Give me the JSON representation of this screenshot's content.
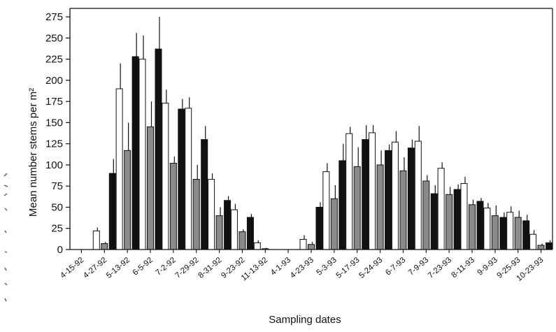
{
  "chart_data": {
    "type": "bar",
    "xlabel": "Sampling dates",
    "ylabel": "Mean number stems per m²",
    "ylim": [
      0,
      285
    ],
    "yticks": [
      0,
      25,
      50,
      75,
      100,
      125,
      150,
      175,
      200,
      225,
      250,
      275
    ],
    "grid": false,
    "legend": "none",
    "categories": [
      "4-15-92",
      "4-27-92",
      "5-13-92",
      "6-5-92",
      "7-2-92",
      "7-29-92",
      "8-31-92",
      "9-23-92",
      "11-13-92",
      "4-1-93",
      "4-23-93",
      "5-3-93",
      "5-17-93",
      "5-24-93",
      "6-7-93",
      "7-9-93",
      "7-23-93",
      "8-11-93",
      "9-9-93",
      "9-25-93",
      "10-23-93"
    ],
    "series": [
      {
        "fill": "#ffffff",
        "values": [
          0,
          22,
          190,
          225,
          173,
          167,
          83,
          47,
          8,
          0,
          12,
          92,
          137,
          138,
          127,
          128,
          96,
          78,
          49,
          44,
          18
        ],
        "errors": [
          0,
          4,
          30,
          28,
          16,
          13,
          7,
          7,
          3,
          0,
          5,
          10,
          8,
          9,
          13,
          18,
          7,
          8,
          6,
          7,
          5
        ]
      },
      {
        "fill": "#8a8a8a",
        "values": [
          0,
          7,
          117,
          145,
          102,
          83,
          40,
          21,
          1,
          0,
          6,
          60,
          98,
          100,
          93,
          81,
          65,
          53,
          40,
          38,
          5
        ],
        "errors": [
          0,
          2,
          33,
          30,
          8,
          17,
          10,
          3,
          1,
          0,
          3,
          16,
          23,
          17,
          16,
          7,
          9,
          6,
          12,
          8,
          2
        ]
      },
      {
        "fill": "#111111",
        "values": [
          0,
          90,
          228,
          237,
          166,
          130,
          58,
          38,
          0,
          0,
          50,
          105,
          130,
          117,
          120,
          66,
          71,
          57,
          38,
          34,
          8
        ],
        "errors": [
          0,
          17,
          28,
          38,
          12,
          16,
          5,
          4,
          0,
          0,
          6,
          20,
          17,
          7,
          10,
          10,
          6,
          4,
          6,
          7,
          3
        ]
      }
    ]
  }
}
